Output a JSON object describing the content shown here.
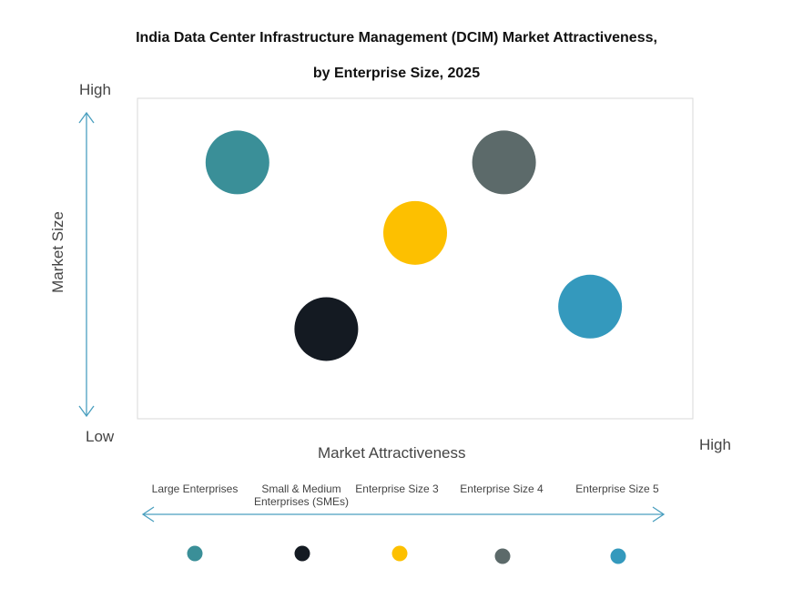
{
  "chart_data": {
    "type": "scatter",
    "title": "India Data Center Infrastructure Management (DCIM) Market Attractiveness,",
    "subtitle": "by Enterprise Size, 2025",
    "xlabel": "Market Attractiveness",
    "ylabel": "Market Size",
    "x_low": "Low",
    "x_high": "High",
    "y_high": "High",
    "xlim": [
      0,
      100
    ],
    "ylim": [
      0,
      100
    ],
    "grid": false,
    "legend_position": "bottom",
    "series": [
      {
        "name": "Large Enterprises",
        "x": 18,
        "y": 80,
        "color": "#3a8f98"
      },
      {
        "name": "Small & Medium Enterprises (SMEs)",
        "x": 34,
        "y": 28,
        "color": "#141a22"
      },
      {
        "name": "Enterprise Size 3",
        "x": 50,
        "y": 58,
        "color": "#fdc000"
      },
      {
        "name": "Enterprise Size 4",
        "x": 66,
        "y": 80,
        "color": "#5c6a6a"
      },
      {
        "name": "Enterprise Size 5",
        "x": 81.5,
        "y": 35,
        "color": "#3499bd"
      }
    ],
    "axis_color": "#4a9fbf"
  }
}
